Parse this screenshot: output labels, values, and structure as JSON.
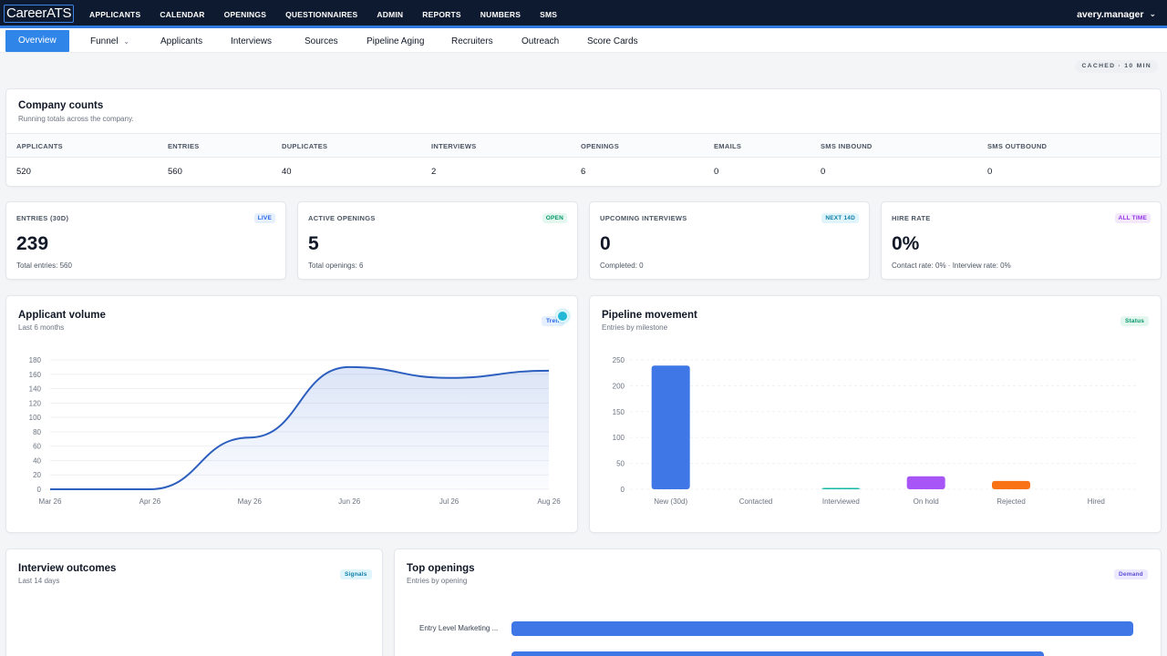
{
  "app": {
    "logo": "CareerATS"
  },
  "topnav": {
    "items": [
      "APPLICANTS",
      "CALENDAR",
      "OPENINGS",
      "QUESTIONNAIRES",
      "ADMIN",
      "REPORTS",
      "NUMBERS",
      "SMS"
    ],
    "user": "avery.manager"
  },
  "subnav": {
    "tabs": [
      "Overview",
      "Funnel",
      "Applicants",
      "Interviews",
      "Sources",
      "Pipeline Aging",
      "Recruiters",
      "Outreach",
      "Score Cards"
    ]
  },
  "cached_label": "CACHED · 10 MIN",
  "company_counts": {
    "title": "Company counts",
    "subtitle": "Running totals across the company.",
    "headers": [
      "APPLICANTS",
      "ENTRIES",
      "DUPLICATES",
      "INTERVIEWS",
      "OPENINGS",
      "EMAILS",
      "SMS INBOUND",
      "SMS OUTBOUND"
    ],
    "values": [
      "520",
      "560",
      "40",
      "2",
      "6",
      "0",
      "0",
      "0"
    ]
  },
  "kpis": [
    {
      "label": "ENTRIES (30D)",
      "badge": "LIVE",
      "value": "239",
      "note": "Total entries: 560"
    },
    {
      "label": "ACTIVE OPENINGS",
      "badge": "OPEN",
      "value": "5",
      "note": "Total openings: 6"
    },
    {
      "label": "UPCOMING INTERVIEWS",
      "badge": "NEXT 14D",
      "value": "0",
      "note": "Completed: 0"
    },
    {
      "label": "HIRE RATE",
      "badge": "ALL TIME",
      "value": "0%",
      "note": "Contact rate: 0% · Interview rate: 0%"
    }
  ],
  "colors": {
    "accent": "#2f86e8",
    "nav_bg": "#0e1a2f",
    "line": "#2d5fbf",
    "bar_new": "#3f77e6",
    "bar_interviewed": "#14b8a6",
    "bar_onhold": "#a855f7",
    "bar_rejected": "#f97316"
  },
  "applicant_volume": {
    "title": "Applicant volume",
    "subtitle": "Last 6 months",
    "badge": "Tren"
  },
  "pipeline_movement": {
    "title": "Pipeline movement",
    "subtitle": "Entries by milestone",
    "badge": "Status"
  },
  "interview_outcomes": {
    "title": "Interview outcomes",
    "subtitle": "Last 14 days",
    "badge": "Signals"
  },
  "top_openings": {
    "title": "Top openings",
    "subtitle": "Entries by opening",
    "badge": "Demand",
    "labels": [
      "Entry Level Marketing ..."
    ]
  },
  "chart_data": [
    {
      "type": "area",
      "x": [
        "Mar 26",
        "Apr 26",
        "May 26",
        "Jun 26",
        "Jul 26",
        "Aug 26"
      ],
      "values": [
        0,
        0,
        72,
        170,
        155,
        165
      ],
      "ylim": [
        0,
        180
      ],
      "yticks": [
        0,
        20,
        40,
        60,
        80,
        100,
        120,
        140,
        160,
        180
      ],
      "grid": true
    },
    {
      "type": "bar",
      "categories": [
        "New (30d)",
        "Contacted",
        "Interviewed",
        "On hold",
        "Rejected",
        "Hired"
      ],
      "values": [
        239,
        0,
        1,
        25,
        16,
        0
      ],
      "ylim": [
        0,
        250
      ],
      "yticks": [
        0,
        50,
        100,
        150,
        200,
        250
      ],
      "grid": true
    },
    {
      "type": "bar",
      "orientation": "horizontal",
      "categories": [
        "Entry Level Marketing ..."
      ],
      "values": [
        1
      ]
    }
  ]
}
